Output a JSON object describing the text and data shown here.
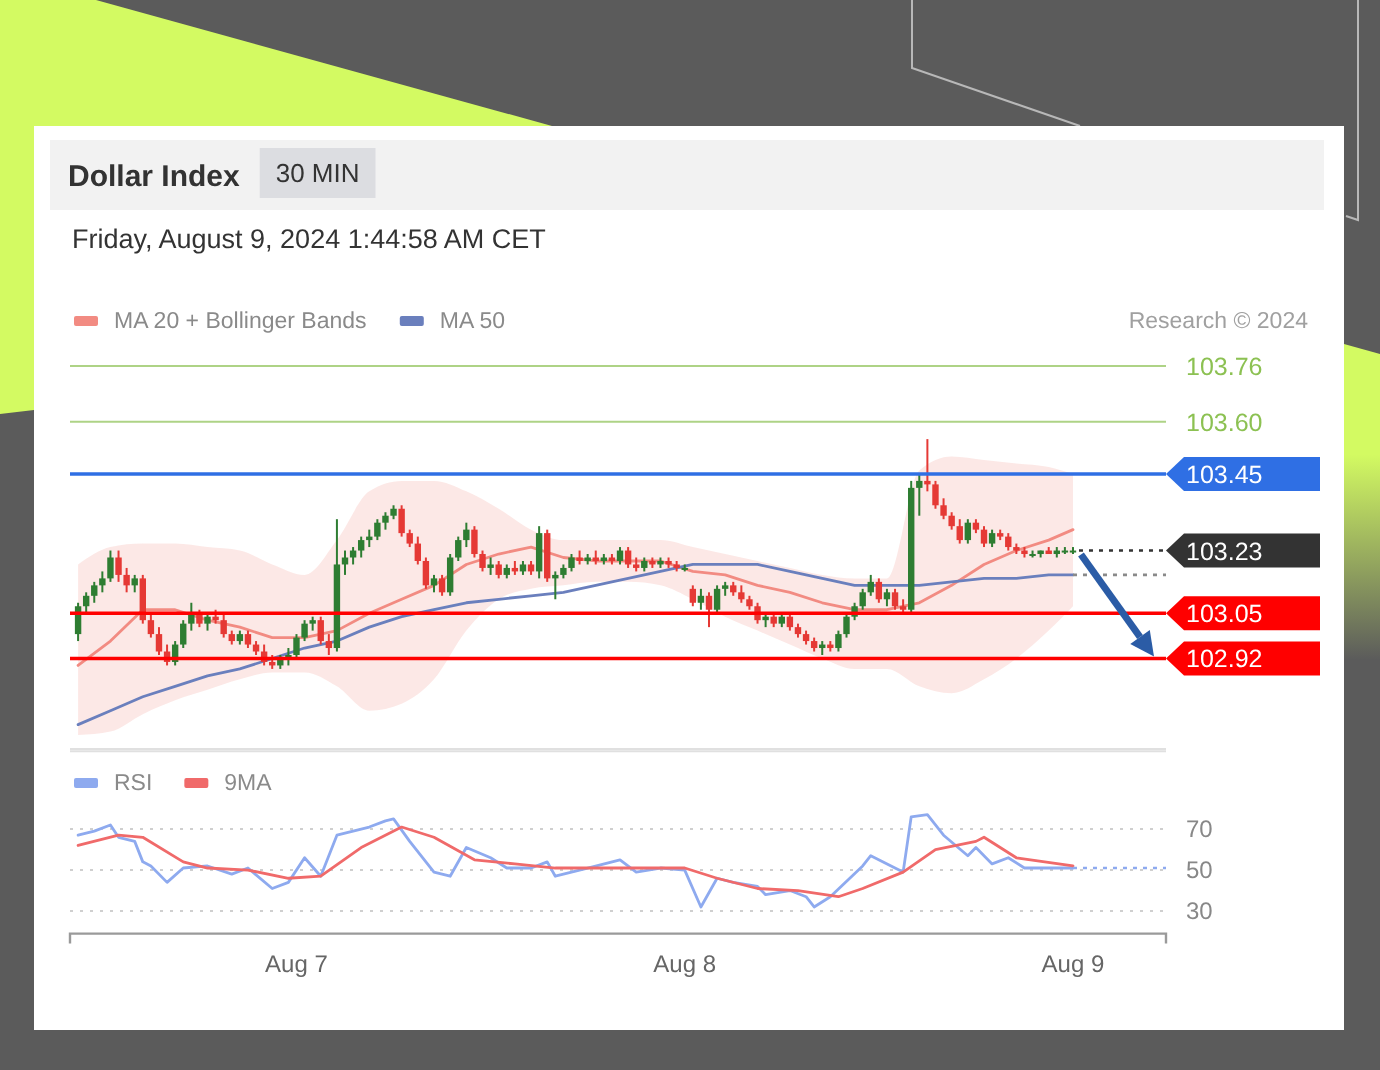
{
  "chart_data": [
    {
      "type": "candlestick",
      "title": "Dollar Index",
      "subtitle": "Friday, August 9, 2024 1:44:58 AM CET",
      "annotations": [
        "30 MIN",
        "Research © 2024"
      ],
      "x": [
        "2024-08-06T10:30",
        "2024-08-06T11:00",
        "2024-08-06T11:30",
        "2024-08-06T12:00",
        "2024-08-06T12:30",
        "2024-08-06T13:00",
        "2024-08-06T13:30",
        "2024-08-06T14:00",
        "2024-08-06T14:30",
        "2024-08-06T15:00",
        "2024-08-06T15:30",
        "2024-08-06T16:00",
        "2024-08-06T16:30",
        "2024-08-06T17:00",
        "2024-08-06T17:30",
        "2024-08-06T18:00",
        "2024-08-06T18:30",
        "2024-08-06T19:00",
        "2024-08-06T19:30",
        "2024-08-06T20:00",
        "2024-08-06T20:30",
        "2024-08-06T21:00",
        "2024-08-06T21:30",
        "2024-08-06T22:00",
        "2024-08-06T22:30",
        "2024-08-06T23:00",
        "2024-08-06T23:30",
        "2024-08-07T00:00",
        "2024-08-07T00:30",
        "2024-08-07T01:00",
        "2024-08-07T01:30",
        "2024-08-07T02:00",
        "2024-08-07T02:30",
        "2024-08-07T03:00",
        "2024-08-07T03:30",
        "2024-08-07T04:00",
        "2024-08-07T04:30",
        "2024-08-07T05:00",
        "2024-08-07T05:30",
        "2024-08-07T06:00",
        "2024-08-07T06:30",
        "2024-08-07T07:00",
        "2024-08-07T07:30",
        "2024-08-07T08:00",
        "2024-08-07T08:30",
        "2024-08-07T09:00",
        "2024-08-07T09:30",
        "2024-08-07T10:00",
        "2024-08-07T10:30",
        "2024-08-07T11:00",
        "2024-08-07T11:30",
        "2024-08-07T12:00",
        "2024-08-07T12:30",
        "2024-08-07T13:00",
        "2024-08-07T13:30",
        "2024-08-07T14:00",
        "2024-08-07T14:30",
        "2024-08-07T15:00",
        "2024-08-07T15:30",
        "2024-08-07T16:00",
        "2024-08-07T16:30",
        "2024-08-07T17:00",
        "2024-08-07T17:30",
        "2024-08-07T18:00",
        "2024-08-07T18:30",
        "2024-08-07T19:00",
        "2024-08-07T19:30",
        "2024-08-07T20:00",
        "2024-08-07T20:30",
        "2024-08-07T21:00",
        "2024-08-07T21:30",
        "2024-08-07T22:00",
        "2024-08-07T22:30",
        "2024-08-07T23:00",
        "2024-08-07T23:30",
        "2024-08-08T00:00",
        "2024-08-08T00:30",
        "2024-08-08T01:00",
        "2024-08-08T01:30",
        "2024-08-08T02:00",
        "2024-08-08T02:30",
        "2024-08-08T03:00",
        "2024-08-08T03:30",
        "2024-08-08T04:00",
        "2024-08-08T04:30",
        "2024-08-08T05:00",
        "2024-08-08T05:30",
        "2024-08-08T06:00",
        "2024-08-08T06:30",
        "2024-08-08T07:00",
        "2024-08-08T07:30",
        "2024-08-08T08:00",
        "2024-08-08T08:30",
        "2024-08-08T09:00",
        "2024-08-08T09:30",
        "2024-08-08T10:00",
        "2024-08-08T10:30",
        "2024-08-08T11:00",
        "2024-08-08T11:30",
        "2024-08-08T12:00",
        "2024-08-08T12:30",
        "2024-08-08T13:00",
        "2024-08-08T13:30",
        "2024-08-08T14:00",
        "2024-08-08T14:30",
        "2024-08-08T15:00",
        "2024-08-08T15:30",
        "2024-08-08T16:00",
        "2024-08-08T16:30",
        "2024-08-08T17:00",
        "2024-08-08T17:30",
        "2024-08-08T18:00",
        "2024-08-08T18:30",
        "2024-08-08T19:00",
        "2024-08-08T19:30",
        "2024-08-08T20:00",
        "2024-08-08T20:30",
        "2024-08-08T21:00",
        "2024-08-08T21:30",
        "2024-08-08T22:00",
        "2024-08-08T22:30",
        "2024-08-08T23:00",
        "2024-08-08T23:30",
        "2024-08-09T00:00"
      ],
      "ohlc": [
        [
          102.99,
          103.08,
          102.97,
          103.07
        ],
        [
          103.07,
          103.11,
          103.05,
          103.1
        ],
        [
          103.1,
          103.14,
          103.08,
          103.13
        ],
        [
          103.13,
          103.17,
          103.11,
          103.15
        ],
        [
          103.15,
          103.23,
          103.14,
          103.21
        ],
        [
          103.21,
          103.23,
          103.14,
          103.16
        ],
        [
          103.16,
          103.18,
          103.11,
          103.13
        ],
        [
          103.13,
          103.16,
          103.11,
          103.15
        ],
        [
          103.15,
          103.16,
          103.02,
          103.03
        ],
        [
          103.03,
          103.05,
          102.98,
          102.99
        ],
        [
          102.99,
          103.01,
          102.93,
          102.94
        ],
        [
          102.94,
          102.96,
          102.9,
          102.91
        ],
        [
          102.91,
          102.97,
          102.9,
          102.96
        ],
        [
          102.96,
          103.03,
          102.95,
          103.02
        ],
        [
          103.02,
          103.08,
          103.0,
          103.05
        ],
        [
          103.05,
          103.06,
          103.01,
          103.02
        ],
        [
          103.02,
          103.05,
          103.0,
          103.04
        ],
        [
          103.04,
          103.06,
          103.02,
          103.03
        ],
        [
          103.03,
          103.05,
          102.98,
          102.99
        ],
        [
          102.99,
          103.0,
          102.96,
          102.97
        ],
        [
          102.97,
          103.0,
          102.96,
          102.99
        ],
        [
          102.99,
          103.0,
          102.95,
          102.96
        ],
        [
          102.96,
          102.97,
          102.93,
          102.94
        ],
        [
          102.94,
          102.96,
          102.9,
          102.91
        ],
        [
          102.91,
          102.93,
          102.89,
          102.9
        ],
        [
          102.9,
          102.93,
          102.89,
          102.92
        ],
        [
          102.92,
          102.95,
          102.9,
          102.93
        ],
        [
          102.93,
          102.99,
          102.92,
          102.98
        ],
        [
          102.98,
          103.03,
          102.97,
          103.02
        ],
        [
          103.02,
          103.04,
          103.0,
          103.03
        ],
        [
          103.03,
          103.04,
          102.96,
          102.97
        ],
        [
          102.97,
          102.99,
          102.93,
          102.95
        ],
        [
          102.95,
          103.32,
          102.94,
          103.19
        ],
        [
          103.19,
          103.23,
          103.16,
          103.21
        ],
        [
          103.21,
          103.24,
          103.19,
          103.23
        ],
        [
          103.23,
          103.27,
          103.21,
          103.26
        ],
        [
          103.26,
          103.29,
          103.24,
          103.27
        ],
        [
          103.27,
          103.32,
          103.26,
          103.31
        ],
        [
          103.31,
          103.34,
          103.29,
          103.33
        ],
        [
          103.33,
          103.36,
          103.32,
          103.35
        ],
        [
          103.35,
          103.36,
          103.27,
          103.28
        ],
        [
          103.28,
          103.29,
          103.24,
          103.25
        ],
        [
          103.25,
          103.27,
          103.19,
          103.2
        ],
        [
          103.2,
          103.21,
          103.12,
          103.13
        ],
        [
          103.13,
          103.16,
          103.11,
          103.15
        ],
        [
          103.15,
          103.16,
          103.1,
          103.11
        ],
        [
          103.11,
          103.22,
          103.1,
          103.21
        ],
        [
          103.21,
          103.27,
          103.2,
          103.26
        ],
        [
          103.26,
          103.31,
          103.24,
          103.29
        ],
        [
          103.29,
          103.3,
          103.21,
          103.22
        ],
        [
          103.22,
          103.23,
          103.17,
          103.18
        ],
        [
          103.18,
          103.21,
          103.16,
          103.19
        ],
        [
          103.19,
          103.2,
          103.15,
          103.16
        ],
        [
          103.16,
          103.19,
          103.15,
          103.18
        ],
        [
          103.18,
          103.2,
          103.16,
          103.17
        ],
        [
          103.17,
          103.2,
          103.16,
          103.19
        ],
        [
          103.19,
          103.2,
          103.16,
          103.17
        ],
        [
          103.17,
          103.3,
          103.15,
          103.28
        ],
        [
          103.28,
          103.29,
          103.14,
          103.15
        ],
        [
          103.15,
          103.17,
          103.09,
          103.16
        ],
        [
          103.16,
          103.19,
          103.15,
          103.18
        ],
        [
          103.18,
          103.22,
          103.17,
          103.21
        ],
        [
          103.21,
          103.23,
          103.19,
          103.2
        ],
        [
          103.2,
          103.22,
          103.19,
          103.21
        ],
        [
          103.21,
          103.23,
          103.19,
          103.2
        ],
        [
          103.2,
          103.22,
          103.19,
          103.21
        ],
        [
          103.21,
          103.22,
          103.19,
          103.2
        ],
        [
          103.2,
          103.24,
          103.19,
          103.23
        ],
        [
          103.23,
          103.24,
          103.18,
          103.19
        ],
        [
          103.19,
          103.21,
          103.17,
          103.18
        ],
        [
          103.18,
          103.21,
          103.17,
          103.2
        ],
        [
          103.2,
          103.21,
          103.18,
          103.19
        ],
        [
          103.19,
          103.21,
          103.18,
          103.2
        ],
        [
          103.2,
          103.21,
          103.18,
          103.19
        ],
        [
          103.19,
          103.2,
          103.17,
          103.18
        ],
        [
          103.18,
          103.19,
          103.17,
          103.18
        ],
        [
          103.12,
          103.13,
          103.07,
          103.08
        ],
        [
          103.08,
          103.12,
          103.06,
          103.1
        ],
        [
          103.1,
          103.11,
          103.01,
          103.06
        ],
        [
          103.06,
          103.13,
          103.05,
          103.12
        ],
        [
          103.12,
          103.14,
          103.1,
          103.13
        ],
        [
          103.13,
          103.14,
          103.1,
          103.11
        ],
        [
          103.11,
          103.13,
          103.08,
          103.09
        ],
        [
          103.09,
          103.1,
          103.06,
          103.07
        ],
        [
          103.07,
          103.08,
          103.02,
          103.03
        ],
        [
          103.03,
          103.05,
          103.01,
          103.04
        ],
        [
          103.04,
          103.05,
          103.01,
          103.02
        ],
        [
          103.02,
          103.05,
          103.01,
          103.04
        ],
        [
          103.04,
          103.05,
          103.0,
          103.01
        ],
        [
          103.01,
          103.02,
          102.98,
          102.99
        ],
        [
          102.99,
          103.0,
          102.96,
          102.97
        ],
        [
          102.97,
          102.98,
          102.94,
          102.95
        ],
        [
          102.95,
          102.97,
          102.93,
          102.96
        ],
        [
          102.96,
          102.97,
          102.94,
          102.95
        ],
        [
          102.95,
          103.0,
          102.94,
          102.99
        ],
        [
          102.99,
          103.05,
          102.98,
          103.04
        ],
        [
          103.04,
          103.08,
          103.03,
          103.07
        ],
        [
          103.07,
          103.12,
          103.06,
          103.11
        ],
        [
          103.11,
          103.16,
          103.1,
          103.14
        ],
        [
          103.14,
          103.15,
          103.08,
          103.09
        ],
        [
          103.09,
          103.12,
          103.07,
          103.11
        ],
        [
          103.11,
          103.12,
          103.06,
          103.07
        ],
        [
          103.07,
          103.09,
          103.05,
          103.06
        ],
        [
          103.06,
          103.43,
          103.05,
          103.41
        ],
        [
          103.41,
          103.45,
          103.33,
          103.43
        ],
        [
          103.43,
          103.55,
          103.4,
          103.42
        ],
        [
          103.42,
          103.43,
          103.35,
          103.36
        ],
        [
          103.36,
          103.38,
          103.32,
          103.33
        ],
        [
          103.33,
          103.34,
          103.29,
          103.3
        ],
        [
          103.3,
          103.32,
          103.25,
          103.26
        ],
        [
          103.26,
          103.32,
          103.25,
          103.31
        ],
        [
          103.31,
          103.32,
          103.28,
          103.29
        ],
        [
          103.29,
          103.3,
          103.24,
          103.25
        ],
        [
          103.25,
          103.29,
          103.24,
          103.28
        ],
        [
          103.28,
          103.29,
          103.26,
          103.27
        ],
        [
          103.27,
          103.28,
          103.23,
          103.24
        ],
        [
          103.24,
          103.25,
          103.22,
          103.23
        ],
        [
          103.23,
          103.24,
          103.21,
          103.22
        ],
        [
          103.22,
          103.23,
          103.21,
          103.22
        ],
        [
          103.22,
          103.23,
          103.21,
          103.23
        ],
        [
          103.23,
          103.24,
          103.22,
          103.22
        ],
        [
          103.22,
          103.24,
          103.21,
          103.23
        ],
        [
          103.23,
          103.24,
          103.22,
          103.23
        ],
        [
          103.23,
          103.24,
          103.22,
          103.23
        ]
      ],
      "series": [
        {
          "name": "MA 20 + Bollinger Bands",
          "type": "line",
          "color": "#f28b82",
          "x": [
            "2024-08-06T10:30",
            "2024-08-06T12:30",
            "2024-08-06T14:30",
            "2024-08-06T16:30",
            "2024-08-06T18:30",
            "2024-08-06T20:30",
            "2024-08-06T22:30",
            "2024-08-07T00:30",
            "2024-08-07T02:30",
            "2024-08-07T04:30",
            "2024-08-07T06:30",
            "2024-08-07T08:30",
            "2024-08-07T10:30",
            "2024-08-07T12:30",
            "2024-08-07T14:30",
            "2024-08-07T16:30",
            "2024-08-07T18:30",
            "2024-08-07T20:30",
            "2024-08-07T22:30",
            "2024-08-08T00:30",
            "2024-08-08T02:30",
            "2024-08-08T04:30",
            "2024-08-08T06:30",
            "2024-08-08T08:30",
            "2024-08-08T10:30",
            "2024-08-08T12:30",
            "2024-08-08T14:30",
            "2024-08-08T16:30",
            "2024-08-08T18:30",
            "2024-08-08T20:30",
            "2024-08-08T22:30",
            "2024-08-09T00:00"
          ],
          "values": [
            102.9,
            102.97,
            103.06,
            103.06,
            103.03,
            103.01,
            102.98,
            102.98,
            103.0,
            103.05,
            103.09,
            103.13,
            103.19,
            103.22,
            103.24,
            103.21,
            103.2,
            103.2,
            103.2,
            103.17,
            103.16,
            103.13,
            103.11,
            103.08,
            103.06,
            103.06,
            103.08,
            103.13,
            103.19,
            103.23,
            103.26,
            103.29
          ],
          "lower": [
            102.7,
            102.71,
            102.76,
            102.8,
            102.83,
            102.86,
            102.88,
            102.88,
            102.84,
            102.77,
            102.79,
            102.86,
            103.0,
            103.09,
            103.12,
            103.13,
            103.14,
            103.14,
            103.13,
            103.09,
            103.04,
            103.0,
            102.96,
            102.92,
            102.89,
            102.89,
            102.84,
            102.82,
            102.86,
            102.92,
            103.0,
            103.07
          ],
          "upper": [
            103.19,
            103.24,
            103.25,
            103.25,
            103.24,
            103.23,
            103.19,
            103.16,
            103.26,
            103.4,
            103.43,
            103.43,
            103.4,
            103.35,
            103.29,
            103.26,
            103.26,
            103.26,
            103.26,
            103.24,
            103.22,
            103.2,
            103.18,
            103.16,
            103.15,
            103.15,
            103.46,
            103.5,
            103.49,
            103.48,
            103.47,
            103.45
          ]
        },
        {
          "name": "MA 50",
          "type": "line",
          "color": "#6a7fbd",
          "x": [
            "2024-08-06T10:30",
            "2024-08-06T12:30",
            "2024-08-06T14:30",
            "2024-08-06T16:30",
            "2024-08-06T18:30",
            "2024-08-06T20:30",
            "2024-08-06T22:30",
            "2024-08-07T00:30",
            "2024-08-07T02:30",
            "2024-08-07T04:30",
            "2024-08-07T06:30",
            "2024-08-07T08:30",
            "2024-08-07T10:30",
            "2024-08-07T12:30",
            "2024-08-07T14:30",
            "2024-08-07T16:30",
            "2024-08-07T18:30",
            "2024-08-07T20:30",
            "2024-08-07T22:30",
            "2024-08-08T00:30",
            "2024-08-08T02:30",
            "2024-08-08T04:30",
            "2024-08-08T06:30",
            "2024-08-08T08:30",
            "2024-08-08T10:30",
            "2024-08-08T12:30",
            "2024-08-08T14:30",
            "2024-08-08T16:30",
            "2024-08-08T18:30",
            "2024-08-08T20:30",
            "2024-08-08T22:30",
            "2024-08-09T00:00"
          ],
          "values": [
            102.73,
            102.77,
            102.81,
            102.84,
            102.87,
            102.89,
            102.92,
            102.95,
            102.97,
            103.01,
            103.04,
            103.06,
            103.08,
            103.09,
            103.1,
            103.11,
            103.13,
            103.15,
            103.17,
            103.19,
            103.19,
            103.19,
            103.17,
            103.15,
            103.13,
            103.13,
            103.13,
            103.14,
            103.15,
            103.15,
            103.16,
            103.16
          ]
        },
        {
          "type": "line",
          "color": "#8a8a8a",
          "line_style": "dotted",
          "x": [
            "2024-08-09T00:00",
            "2024-08-09T05:45"
          ],
          "values": [
            103.16,
            103.16
          ]
        }
      ],
      "xlim": [
        "2024-08-06T10:00",
        "2024-08-09T05:45"
      ],
      "ylim": [
        102.66,
        103.76
      ],
      "ref_lines": [
        {
          "axis": "y",
          "value": 103.76,
          "label": "103.76",
          "color": "#8cc152"
        },
        {
          "axis": "y",
          "value": 103.6,
          "label": "103.60",
          "color": "#8cc152"
        },
        {
          "axis": "y",
          "value": 103.45,
          "label": "103.45",
          "color": "#2f6fe4"
        },
        {
          "axis": "y",
          "value": 103.23,
          "label": "103.23",
          "color": "#333333",
          "line_style": "dotted"
        },
        {
          "axis": "y",
          "value": 103.05,
          "label": "103.05",
          "color": "#ff0000"
        },
        {
          "axis": "y",
          "value": 102.92,
          "label": "102.92",
          "color": "#ff0000"
        }
      ],
      "legend": "top left"
    },
    {
      "type": "line",
      "series": [
        {
          "name": "RSI",
          "color": "#8eaaef",
          "x": [
            "2024-08-06T10:30",
            "2024-08-06T11:30",
            "2024-08-06T12:30",
            "2024-08-06T13:00",
            "2024-08-06T14:00",
            "2024-08-06T14:30",
            "2024-08-06T15:00",
            "2024-08-06T16:00",
            "2024-08-06T17:00",
            "2024-08-06T18:30",
            "2024-08-06T20:00",
            "2024-08-06T21:00",
            "2024-08-06T22:30",
            "2024-08-06T23:30",
            "2024-08-07T00:30",
            "2024-08-07T01:30",
            "2024-08-07T02:30",
            "2024-08-07T04:30",
            "2024-08-07T05:30",
            "2024-08-07T06:00",
            "2024-08-07T07:00",
            "2024-08-07T08:30",
            "2024-08-07T09:30",
            "2024-08-07T10:30",
            "2024-08-07T12:00",
            "2024-08-07T13:00",
            "2024-08-07T14:30",
            "2024-08-07T15:30",
            "2024-08-07T16:00",
            "2024-08-07T18:00",
            "2024-08-07T20:00",
            "2024-08-07T21:00",
            "2024-08-07T22:30",
            "2024-08-08T00:00",
            "2024-08-08T01:00",
            "2024-08-08T02:00",
            "2024-08-08T03:00",
            "2024-08-08T04:30",
            "2024-08-08T05:00",
            "2024-08-08T06:30",
            "2024-08-08T07:30",
            "2024-08-08T08:00",
            "2024-08-08T09:00",
            "2024-08-08T11:00",
            "2024-08-08T11:30",
            "2024-08-08T13:00",
            "2024-08-08T13:30",
            "2024-08-08T14:00",
            "2024-08-08T15:00",
            "2024-08-08T16:00",
            "2024-08-08T17:30",
            "2024-08-08T18:00",
            "2024-08-08T19:00",
            "2024-08-08T20:00",
            "2024-08-08T21:00",
            "2024-08-08T22:30",
            "2024-08-09T00:00"
          ],
          "values": [
            67,
            69,
            72,
            66,
            64,
            54,
            52,
            44,
            51,
            52,
            48,
            51,
            41,
            44,
            56,
            47,
            67,
            71,
            74,
            75,
            64,
            49,
            47,
            61,
            56,
            51,
            51,
            54,
            47,
            51,
            55,
            49,
            51,
            50,
            32,
            46,
            44,
            42,
            38,
            40,
            37,
            32,
            37,
            52,
            57,
            51,
            49,
            76,
            77,
            67,
            57,
            61,
            53,
            56,
            51,
            51,
            51
          ]
        },
        {
          "name": "9MA",
          "color": "#f06a6a",
          "x": [
            "2024-08-06T10:30",
            "2024-08-06T13:00",
            "2024-08-06T14:30",
            "2024-08-06T17:00",
            "2024-08-06T18:30",
            "2024-08-06T21:00",
            "2024-08-06T23:30",
            "2024-08-07T01:30",
            "2024-08-07T04:00",
            "2024-08-07T06:30",
            "2024-08-07T08:30",
            "2024-08-07T11:00",
            "2024-08-07T13:30",
            "2024-08-07T16:00",
            "2024-08-07T20:00",
            "2024-08-08T00:00",
            "2024-08-08T02:00",
            "2024-08-08T04:30",
            "2024-08-08T07:00",
            "2024-08-08T09:30",
            "2024-08-08T11:00",
            "2024-08-08T13:30",
            "2024-08-08T15:30",
            "2024-08-08T18:00",
            "2024-08-08T18:30",
            "2024-08-08T20:30",
            "2024-08-09T00:00"
          ],
          "values": [
            62,
            67,
            66,
            54,
            51,
            50,
            46,
            47,
            61,
            71,
            66,
            55,
            53,
            51,
            51,
            51,
            46,
            41,
            40,
            37,
            41,
            49,
            60,
            64,
            66,
            56,
            52
          ]
        },
        {
          "type": "line",
          "color": "#8eaaef",
          "line_style": "dotted",
          "x": [
            "2024-08-09T00:00",
            "2024-08-09T05:45"
          ],
          "values": [
            51,
            51
          ]
        }
      ],
      "xlim": [
        "2024-08-06T10:00",
        "2024-08-09T05:45"
      ],
      "ylim": [
        19,
        108
      ],
      "yticks": [
        30,
        50,
        70
      ],
      "xticks": [
        {
          "value": "2024-08-07T00:00",
          "label": "Aug 7"
        },
        {
          "value": "2024-08-08T00:00",
          "label": "Aug 8"
        },
        {
          "value": "2024-08-09T00:00",
          "label": "Aug 9"
        }
      ],
      "grid": "y",
      "legend": "top left"
    }
  ]
}
